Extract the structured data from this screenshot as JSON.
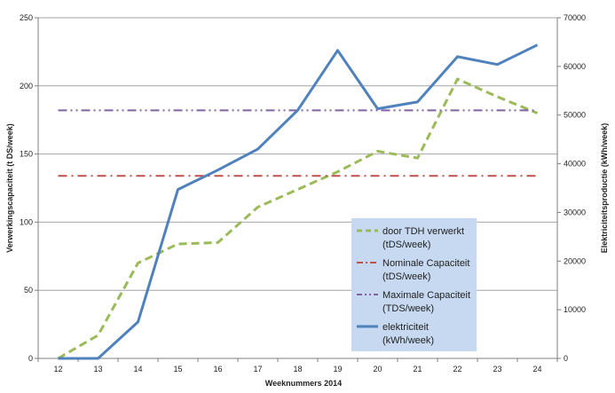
{
  "chart_data": {
    "type": "line",
    "title": "",
    "xlabel": "Weeknummers 2014",
    "ylabel_left": "Verwerkingscapaciteit (t DS/week)",
    "ylabel_right": "Elektriciteitsproductie (kWh/week)",
    "x": [
      "12",
      "13",
      "14",
      "15",
      "16",
      "17",
      "18",
      "19",
      "20",
      "21",
      "22",
      "23",
      "24"
    ],
    "ylim_left": [
      0,
      250
    ],
    "ylim_right": [
      0,
      70000
    ],
    "yticks_left": [
      "0",
      "50",
      "100",
      "150",
      "200",
      "250"
    ],
    "yticks_right": [
      "0",
      "10000",
      "20000",
      "30000",
      "40000",
      "50000",
      "60000",
      "70000"
    ],
    "grid": true,
    "legend_position": "center-right",
    "series": [
      {
        "name_line1": "door TDH verwerkt",
        "name_line2": "(tDS/week)",
        "axis": "left",
        "style": "dashed",
        "color": "#9BBB59",
        "values": [
          0,
          17,
          70,
          84,
          85,
          111,
          124,
          137,
          152,
          147,
          205,
          192,
          180
        ]
      },
      {
        "name_line1": "Nominale Capaciteit",
        "name_line2": "(tDS/week)",
        "axis": "left",
        "style": "dashdot",
        "color": "#C0504D",
        "values": [
          134,
          134,
          134,
          134,
          134,
          134,
          134,
          134,
          134,
          134,
          134,
          134,
          134
        ]
      },
      {
        "name_line1": "Maximale Capaciteit",
        "name_line2": "(TDS/week)",
        "axis": "left",
        "style": "dashdotdot",
        "color": "#8064A2",
        "values": [
          182,
          182,
          182,
          182,
          182,
          182,
          182,
          182,
          182,
          182,
          182,
          182,
          182
        ]
      },
      {
        "name_line1": "elektriciteit",
        "name_line2": "(kWh/week)",
        "axis": "right",
        "style": "solid",
        "color": "#4F81BD",
        "values": [
          0,
          0,
          7500,
          34700,
          38700,
          43000,
          51000,
          63300,
          51300,
          52700,
          62000,
          60400,
          64400
        ]
      }
    ],
    "legend_background": "#C6D9F1",
    "grid_color": "#A6A6A6",
    "axis_color": "#7F7F7F"
  }
}
